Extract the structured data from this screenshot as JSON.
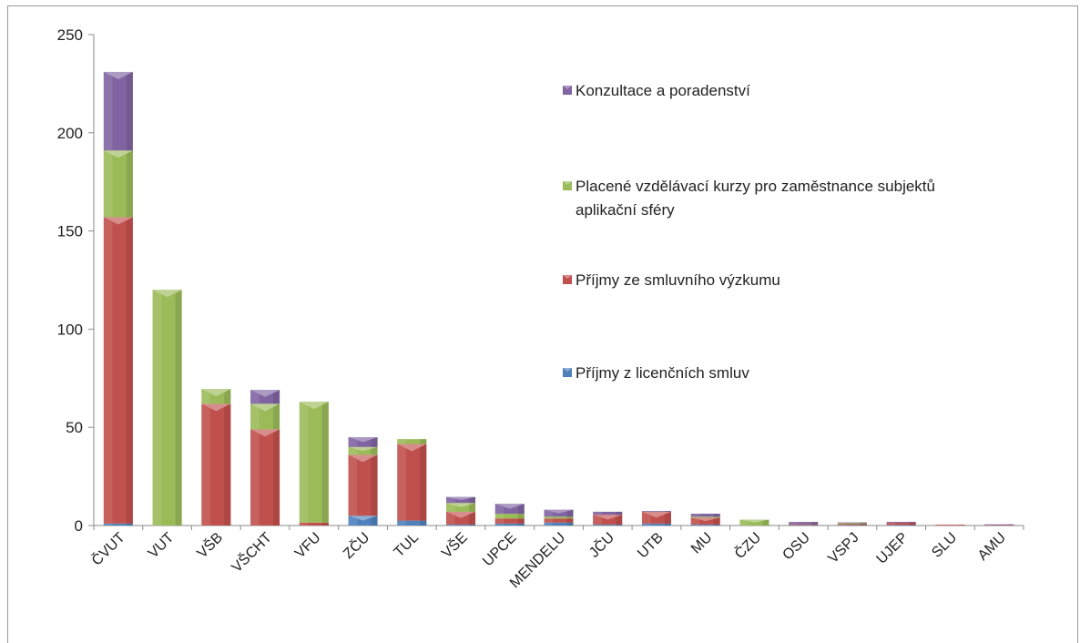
{
  "chart_data": {
    "type": "bar",
    "stacked": true,
    "title": "",
    "xlabel": "",
    "ylabel": "",
    "ylim": [
      0,
      250
    ],
    "yticks": [
      "0",
      "50",
      "100",
      "150",
      "200",
      "250"
    ],
    "grid": false,
    "legend_position": "right",
    "categories": [
      "ČVUT",
      "VUT",
      "VŠB",
      "VŠCHT",
      "VFU",
      "ZČU",
      "TUL",
      "VŠE",
      "UPCE",
      "MENDELU",
      "JČU",
      "UTB",
      "MU",
      "ČZU",
      "OSU",
      "VSPJ",
      "UJEP",
      "SLU",
      "AMU"
    ],
    "series": [
      {
        "name": "Příjmy z licenčních smluv",
        "color": "#4f81bd",
        "values": [
          1,
          0,
          0,
          0,
          0,
          5,
          2.5,
          0.5,
          1,
          1.5,
          0.5,
          1,
          0.5,
          0,
          0.3,
          0.2,
          0.3,
          0,
          0
        ]
      },
      {
        "name": "Příjmy ze smluvního výzkumu",
        "color": "#c0504d",
        "values": [
          156,
          0,
          62,
          49,
          1.5,
          31,
          39,
          6.5,
          2.5,
          2,
          5,
          6,
          3.5,
          0,
          0.5,
          0.5,
          1.2,
          0.4,
          0.2
        ]
      },
      {
        "name": "Placené vzdělávací kurzy pro zaměstnance subjektů aplikační sféry",
        "color": "#9bbb59",
        "values": [
          34,
          120,
          7.5,
          13,
          61.5,
          4,
          2.5,
          4.5,
          2.5,
          1,
          0,
          0,
          0.5,
          3,
          0,
          0.5,
          0,
          0,
          0
        ]
      },
      {
        "name": "Konzultace a poradenství",
        "color": "#8064a2",
        "values": [
          40,
          0,
          0,
          7,
          0,
          5,
          0,
          3,
          5,
          3.5,
          1.5,
          0.2,
          1.5,
          0,
          1,
          0.2,
          0.2,
          0,
          0.2
        ]
      }
    ]
  }
}
